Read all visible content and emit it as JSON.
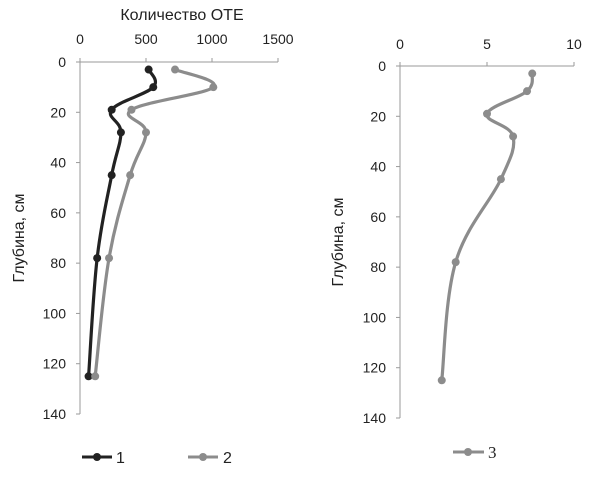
{
  "chart_data": [
    {
      "type": "line",
      "title": "",
      "xlabel": "Количество ОТЕ",
      "ylabel": "Глубина, см",
      "xlim": [
        0,
        1500
      ],
      "ylim": [
        0,
        140
      ],
      "x_axis_position": "top",
      "y_inverted": true,
      "x_ticks": [
        "0",
        "500",
        "1000",
        "1500"
      ],
      "y_ticks": [
        "0",
        "20",
        "40",
        "60",
        "80",
        "100",
        "120",
        "140"
      ],
      "grid": false,
      "legend_position": "bottom",
      "series": [
        {
          "name": "1",
          "color": "#222222",
          "points": [
            [
              520,
              3
            ],
            [
              555,
              10
            ],
            [
              240,
              19
            ],
            [
              310,
              28
            ],
            [
              240,
              45
            ],
            [
              130,
              78
            ],
            [
              65,
              125
            ]
          ]
        },
        {
          "name": "2",
          "color": "#8c8c8c",
          "points": [
            [
              720,
              3
            ],
            [
              1010,
              10
            ],
            [
              390,
              19
            ],
            [
              500,
              28
            ],
            [
              380,
              45
            ],
            [
              220,
              78
            ],
            [
              115,
              125
            ]
          ]
        }
      ]
    },
    {
      "type": "line",
      "title": "",
      "xlabel": "",
      "ylabel": "Глубина, см",
      "xlim": [
        0,
        10
      ],
      "ylim": [
        0,
        140
      ],
      "x_axis_position": "top",
      "y_inverted": true,
      "x_ticks": [
        "0",
        "5",
        "10"
      ],
      "y_ticks": [
        "0",
        "20",
        "40",
        "60",
        "80",
        "100",
        "120",
        "140"
      ],
      "grid": false,
      "legend_position": "bottom",
      "series": [
        {
          "name": "3",
          "color": "#8c8c8c",
          "points": [
            [
              7.6,
              3
            ],
            [
              7.3,
              10
            ],
            [
              5.0,
              19
            ],
            [
              6.5,
              28
            ],
            [
              5.8,
              45
            ],
            [
              3.2,
              78
            ],
            [
              2.4,
              125
            ]
          ]
        }
      ]
    }
  ]
}
